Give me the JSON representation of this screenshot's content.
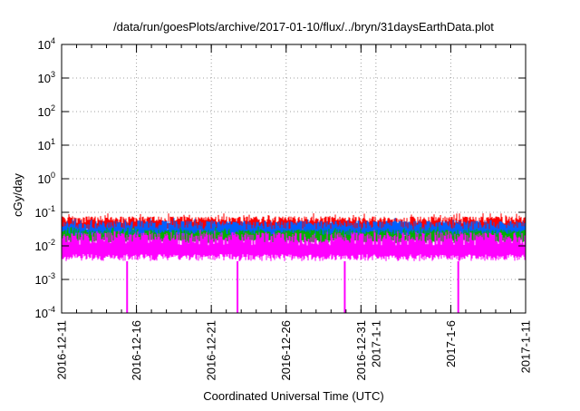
{
  "chart_data": {
    "type": "line",
    "title": "/data/run/goesPlots/archive/2017-01-10/flux/../bryn/31daysEarthData.plot",
    "xlabel": "Coordinated Universal Time (UTC)",
    "ylabel": "cGy/day",
    "yscale": "log",
    "ylim": [
      0.0001,
      10000
    ],
    "xlim": [
      "2016-12-11",
      "2017-01-11"
    ],
    "grid": true,
    "legend": "none",
    "y_ticks": [
      {
        "mant": "10",
        "exp": "-4",
        "value": 0.0001
      },
      {
        "mant": "10",
        "exp": "-3",
        "value": 0.001
      },
      {
        "mant": "10",
        "exp": "-2",
        "value": 0.01
      },
      {
        "mant": "10",
        "exp": "-1",
        "value": 0.1
      },
      {
        "mant": "10",
        "exp": "0",
        "value": 1
      },
      {
        "mant": "10",
        "exp": "1",
        "value": 10
      },
      {
        "mant": "10",
        "exp": "2",
        "value": 100
      },
      {
        "mant": "10",
        "exp": "3",
        "value": 1000
      },
      {
        "mant": "10",
        "exp": "4",
        "value": 10000
      }
    ],
    "x_ticks": [
      {
        "label": "2016-12-11",
        "date": "2016-12-11"
      },
      {
        "label": "2016-12-16",
        "date": "2016-12-16"
      },
      {
        "label": "2016-12-21",
        "date": "2016-12-21"
      },
      {
        "label": "2016-12-26",
        "date": "2016-12-26"
      },
      {
        "label": "2016-12-31",
        "date": "2016-12-31"
      },
      {
        "label": "2017-1-1",
        "date": "2017-01-01"
      },
      {
        "label": "2017-1-6",
        "date": "2017-01-06"
      },
      {
        "label": "2017-1-11",
        "date": "2017-01-11"
      }
    ],
    "series": [
      {
        "color": "#ff0000",
        "low": 0.025,
        "high": 0.075
      },
      {
        "color": "#0060ff",
        "low": 0.015,
        "high": 0.055
      },
      {
        "color": "#00b000",
        "low": 0.012,
        "high": 0.03
      },
      {
        "color": "#ff00ff",
        "low": 0.0035,
        "high": 0.025
      }
    ],
    "dropouts": [
      "2016-12-15T09:00",
      "2016-12-22T18:00",
      "2016-12-29T22:00",
      "2017-01-06T12:00"
    ],
    "dropout_value": 0.0001
  }
}
